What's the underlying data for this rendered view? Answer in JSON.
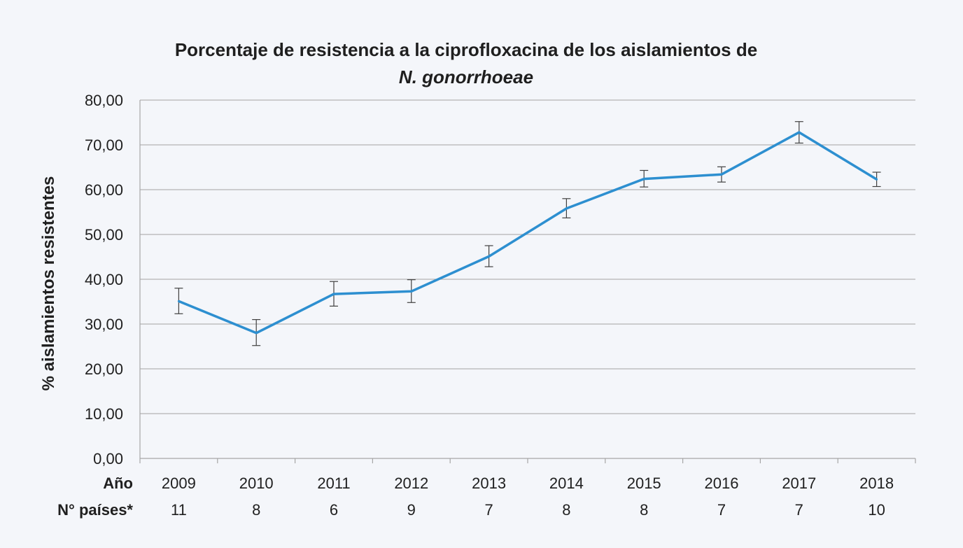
{
  "chart_data": {
    "type": "line",
    "title_line1": "Porcentaje de resistencia a la ciprofloxacina de los aislamientos de",
    "title_line2": "N. gonorrhoeae",
    "ylabel": "% aislamientos  resistentes",
    "ylim": [
      0,
      80
    ],
    "yticks": [
      "0,00",
      "10,00",
      "20,00",
      "30,00",
      "40,00",
      "50,00",
      "60,00",
      "70,00",
      "80,00"
    ],
    "ytick_values": [
      0,
      10,
      20,
      30,
      40,
      50,
      60,
      70,
      80
    ],
    "x_row_label": "Año",
    "categories": [
      "2009",
      "2010",
      "2011",
      "2012",
      "2013",
      "2014",
      "2015",
      "2016",
      "2017",
      "2018"
    ],
    "n_row_label": "N° países*",
    "n_countries": [
      "11",
      "8",
      "6",
      "9",
      "7",
      "8",
      "8",
      "7",
      "7",
      "10"
    ],
    "series": [
      {
        "values": [
          35.1,
          28.0,
          36.7,
          37.3,
          45.1,
          55.8,
          62.4,
          63.4,
          72.8,
          62.3
        ],
        "lower": [
          32.3,
          25.2,
          34.0,
          34.8,
          42.8,
          53.7,
          60.6,
          61.7,
          70.4,
          60.7
        ],
        "upper": [
          38.0,
          31.0,
          39.5,
          39.9,
          47.5,
          58.0,
          64.3,
          65.1,
          75.2,
          63.9
        ],
        "color": "#2d8fd0"
      }
    ],
    "grid": true,
    "legend": "none"
  }
}
